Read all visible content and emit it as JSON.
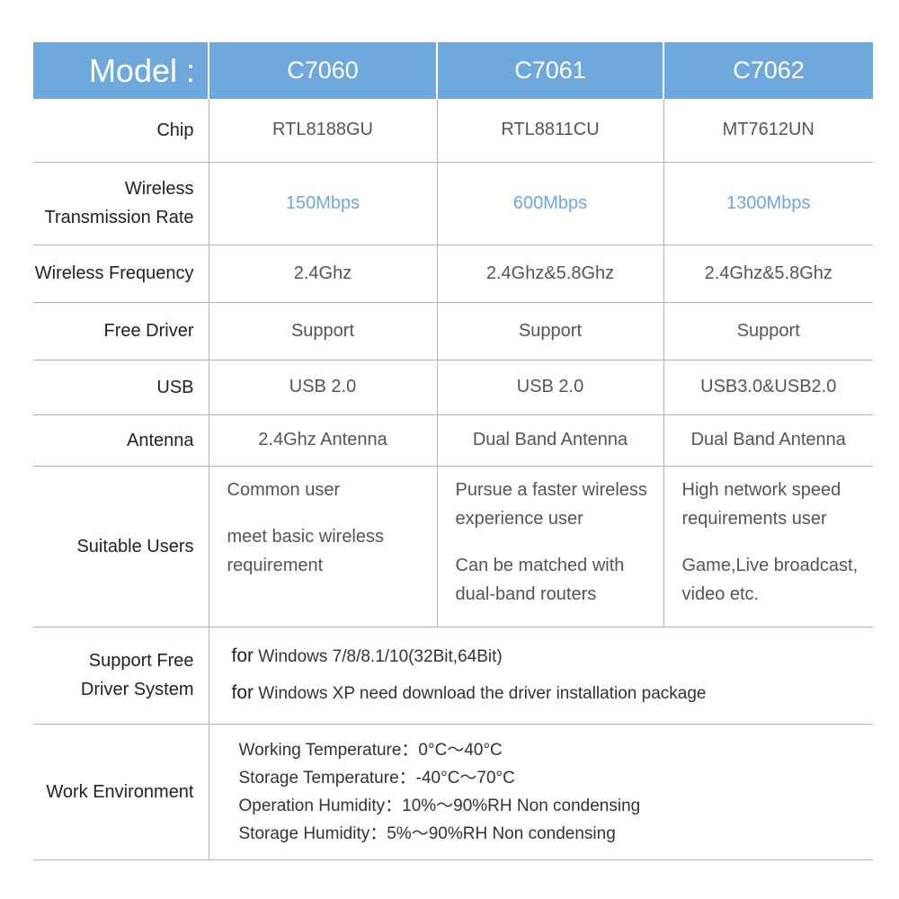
{
  "header": {
    "model_label": "Model :",
    "models": [
      "C7060",
      "C7061",
      "C7062"
    ]
  },
  "rows": {
    "chip": {
      "label": "Chip",
      "values": [
        "RTL8188GU",
        "RTL8811CU",
        "MT7612UN"
      ]
    },
    "rate": {
      "label_line1": "Wireless",
      "label_line2": "Transmission Rate",
      "values": [
        "150Mbps",
        "600Mbps",
        "1300Mbps"
      ]
    },
    "frequency": {
      "label": "Wireless Frequency",
      "values": [
        "2.4Ghz",
        "2.4Ghz&5.8Ghz",
        "2.4Ghz&5.8Ghz"
      ]
    },
    "driver": {
      "label": "Free Driver",
      "values": [
        "Support",
        "Support",
        "Support"
      ]
    },
    "usb": {
      "label": "USB",
      "values": [
        "USB 2.0",
        "USB 2.0",
        "USB3.0&USB2.0"
      ]
    },
    "antenna": {
      "label": "Antenna",
      "values": [
        "2.4Ghz Antenna",
        "Dual Band Antenna",
        "Dual Band Antenna"
      ]
    },
    "users": {
      "label": "Suitable Users",
      "values": [
        [
          "Common user",
          "meet basic wireless requirement"
        ],
        [
          "Pursue a faster wireless experience user",
          "Can be matched with dual-band routers"
        ],
        [
          "High network speed requirements user",
          "Game,Live broadcast, video etc."
        ]
      ]
    },
    "driver_system": {
      "label_line1": "Support Free",
      "label_line2": "Driver System",
      "prefix": "for",
      "lines": [
        "Windows 7/8/8.1/10(32Bit,64Bit)",
        "Windows XP need download the driver installation package"
      ]
    },
    "environment": {
      "label": "Work Environment",
      "lines": [
        "Working Temperature：0°C～40°C",
        "Storage Temperature：-40°C～70°C",
        "Operation Humidity：10%～90%RH Non condensing",
        "Storage Humidity：5%～90%RH Non condensing"
      ]
    }
  },
  "colors": {
    "header_bg": "#6fa8dc",
    "rate_text": "#6fa8dc"
  }
}
